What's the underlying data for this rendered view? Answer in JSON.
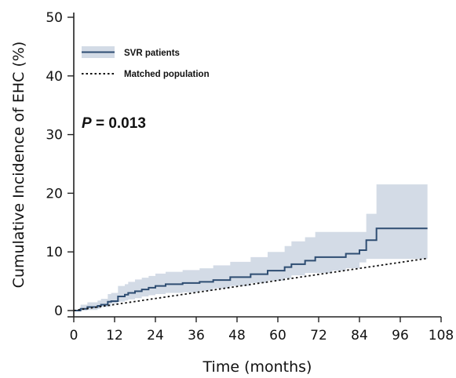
{
  "chart_data": {
    "type": "line",
    "title": "",
    "xlabel": "Time (months)",
    "ylabel": "Cumulative Incidence of EHC (%)",
    "xlim": [
      0,
      108
    ],
    "ylim": [
      0,
      50
    ],
    "xticks": [
      0,
      12,
      24,
      36,
      48,
      60,
      72,
      84,
      96,
      108
    ],
    "yticks": [
      0,
      10,
      20,
      30,
      40,
      50
    ],
    "grid": false,
    "legend_position": "top-left",
    "annotation": {
      "italic": "P",
      "text": " = 0.013"
    },
    "series": [
      {
        "name": "SVR patients",
        "style": "step-solid",
        "color": "#2e4d72",
        "ci_color": "#d3dbe6",
        "x": [
          0,
          2,
          4,
          7,
          8,
          10,
          11,
          13,
          15,
          16,
          18,
          20,
          22,
          24,
          27,
          32,
          37,
          41,
          46,
          52,
          57,
          62,
          64,
          68,
          71,
          76,
          80,
          84,
          86,
          89,
          104
        ],
        "y": [
          0,
          0.3,
          0.6,
          0.8,
          1.0,
          1.5,
          1.6,
          2.4,
          2.7,
          3.0,
          3.3,
          3.6,
          3.9,
          4.2,
          4.5,
          4.7,
          4.9,
          5.2,
          5.7,
          6.2,
          6.8,
          7.4,
          7.9,
          8.5,
          9.1,
          9.1,
          9.7,
          10.3,
          12.0,
          14.0,
          14.0
        ],
        "ci_lower": [
          0,
          0,
          0,
          0.1,
          0.3,
          0.6,
          0.7,
          1.2,
          1.5,
          1.7,
          1.9,
          2.1,
          2.4,
          2.6,
          2.8,
          3.0,
          3.1,
          3.4,
          3.8,
          4.2,
          4.7,
          5.1,
          5.5,
          6.0,
          6.4,
          6.4,
          6.8,
          7.2,
          8.2,
          8.8,
          8.8
        ],
        "ci_upper": [
          0,
          1.0,
          1.4,
          1.7,
          2.0,
          2.8,
          3.0,
          4.2,
          4.5,
          4.9,
          5.3,
          5.6,
          5.9,
          6.3,
          6.6,
          6.9,
          7.2,
          7.7,
          8.3,
          9.1,
          10.0,
          11.0,
          11.8,
          12.5,
          13.4,
          13.4,
          13.4,
          13.4,
          16.5,
          21.5,
          21.5
        ]
      },
      {
        "name": "Matched population",
        "style": "dotted",
        "color": "#111111",
        "x": [
          0,
          104
        ],
        "y": [
          0,
          8.9
        ]
      }
    ]
  }
}
